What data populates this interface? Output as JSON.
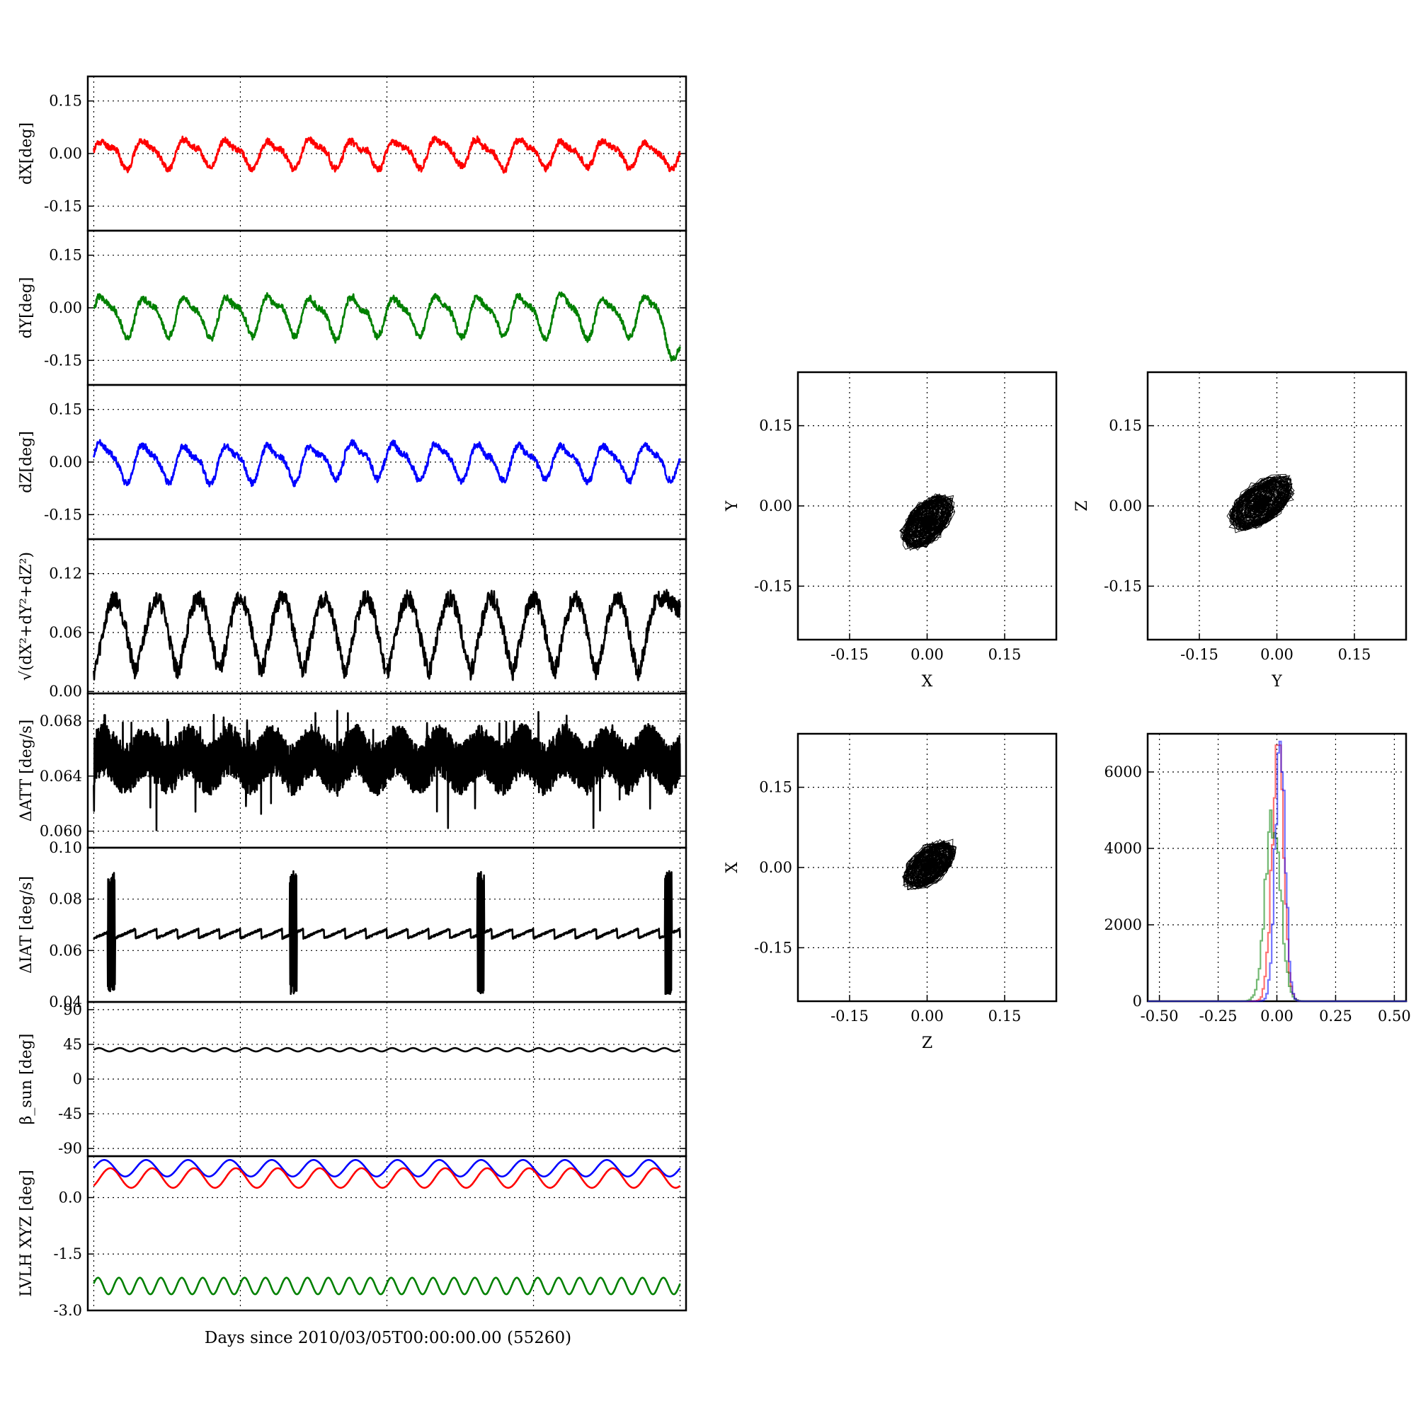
{
  "figure": {
    "xlabel": "Days since 2010/03/05T00:00:00.00 (55260)"
  },
  "chart_data": [
    {
      "type": "line",
      "ylabel": "dX[deg]",
      "yticks": [
        "0.15",
        "0.00",
        "-0.15"
      ],
      "ylim": [
        -0.22,
        0.22
      ],
      "cycles": 14,
      "series": [
        {
          "values": "periodic signal, amplitude ~0.035 deg, ~14 cycles",
          "color": "#ff0000"
        }
      ]
    },
    {
      "type": "line",
      "ylabel": "dY[deg]",
      "yticks": [
        "0.15",
        "0.00",
        "-0.15"
      ],
      "ylim": [
        -0.22,
        0.22
      ],
      "cycles": 14,
      "series": [
        {
          "values": "periodic signal, amplitude ~0.05 deg, ~14 cycles",
          "color": "#008000"
        }
      ]
    },
    {
      "type": "line",
      "ylabel": "dZ[deg]",
      "yticks": [
        "0.15",
        "0.00",
        "-0.15"
      ],
      "ylim": [
        -0.22,
        0.22
      ],
      "cycles": 14,
      "series": [
        {
          "values": "periodic signal, amplitude ~0.045 deg, ~14 cycles",
          "color": "#0000ff"
        }
      ]
    },
    {
      "type": "line",
      "ylabel": "√(dX²+dY²+dZ²)",
      "yticks": [
        "0.12",
        "0.06",
        "0.00"
      ],
      "ylim": [
        -0.002,
        0.155
      ],
      "cycles": 14,
      "series": [
        {
          "values": "magnitude, range 0.005 to 0.125 deg",
          "color": "#000000"
        }
      ]
    },
    {
      "type": "line",
      "ylabel": "ΔATT [deg/s]",
      "yticks": [
        "0.068",
        "0.064",
        "0.060"
      ],
      "ylim": [
        0.0588,
        0.07
      ],
      "series": [
        {
          "values": "dense oscillation, 0.0635 to 0.0668 deg/s, dips to 0.0595",
          "color": "#000000"
        }
      ]
    },
    {
      "type": "line",
      "ylabel": "ΔIAT [deg/s]",
      "yticks": [
        "0.10",
        "0.08",
        "0.06",
        "0.04"
      ],
      "ylim": [
        0.04,
        0.1
      ],
      "spikes_at_fraction": [
        0.03,
        0.34,
        0.66,
        0.98
      ],
      "series": [
        {
          "values": "baseline ~0.066 deg/s, spikes 0.043 to 0.092",
          "color": "#000000"
        }
      ]
    },
    {
      "type": "line",
      "ylabel": "β_sun [deg]",
      "yticks": [
        "90",
        "45",
        "0",
        "-45",
        "-90"
      ],
      "ylim": [
        -100,
        100
      ],
      "series": [
        {
          "values": "~38 deg, small ripple",
          "color": "#000000"
        }
      ]
    },
    {
      "type": "line",
      "ylabel": "LVLH XYZ [deg]",
      "yticks": [
        "0.0",
        "-1.5",
        "-3.0"
      ],
      "ylim": [
        -3.0,
        1.1
      ],
      "cycles": 14,
      "series": [
        {
          "values": "~0.6 to 1.0",
          "color": "#0000ff"
        },
        {
          "values": "~0.3 to 0.8",
          "color": "#ff0000"
        },
        {
          "values": "~-2.6 to -2.1, ~28 cycles",
          "color": "#008000"
        }
      ]
    },
    {
      "type": "scatter",
      "xlabel": "X",
      "ylabel": "Y",
      "xticks": [
        "-0.15",
        "0.00",
        "0.15"
      ],
      "yticks": [
        "0.15",
        "0.00",
        "-0.15"
      ],
      "xlim": [
        -0.25,
        0.25
      ],
      "ylim": [
        -0.25,
        0.25
      ],
      "cloud": {
        "center": [
          0.0,
          -0.03
        ],
        "spread": [
          0.045,
          0.045
        ]
      }
    },
    {
      "type": "scatter",
      "xlabel": "Y",
      "ylabel": "Z",
      "xticks": [
        "-0.15",
        "0.00",
        "0.15"
      ],
      "yticks": [
        "0.15",
        "0.00",
        "-0.15"
      ],
      "xlim": [
        -0.25,
        0.25
      ],
      "ylim": [
        -0.25,
        0.25
      ],
      "cloud": {
        "center": [
          -0.03,
          0.005
        ],
        "spread": [
          0.055,
          0.045
        ]
      }
    },
    {
      "type": "scatter",
      "xlabel": "Z",
      "ylabel": "X",
      "xticks": [
        "-0.15",
        "0.00",
        "0.15"
      ],
      "yticks": [
        "0.15",
        "0.00",
        "-0.15"
      ],
      "xlim": [
        -0.25,
        0.25
      ],
      "ylim": [
        -0.25,
        0.25
      ],
      "cloud": {
        "center": [
          0.005,
          0.005
        ],
        "spread": [
          0.045,
          0.04
        ]
      }
    },
    {
      "type": "histogram",
      "xticks": [
        "-0.50",
        "-0.25",
        "0.00",
        "0.25",
        "0.50"
      ],
      "yticks": [
        "6000",
        "4000",
        "2000",
        "0"
      ],
      "xlim": [
        -0.55,
        0.55
      ],
      "ylim": [
        0,
        7000
      ],
      "series": [
        {
          "color": "#ff0000",
          "peak": 6700,
          "center": 0.0,
          "spread": 0.035
        },
        {
          "color": "#008000",
          "peak": 5000,
          "center": -0.02,
          "spread": 0.045
        },
        {
          "color": "#0000ff",
          "peak": 6800,
          "center": 0.01,
          "spread": 0.03
        }
      ]
    }
  ]
}
